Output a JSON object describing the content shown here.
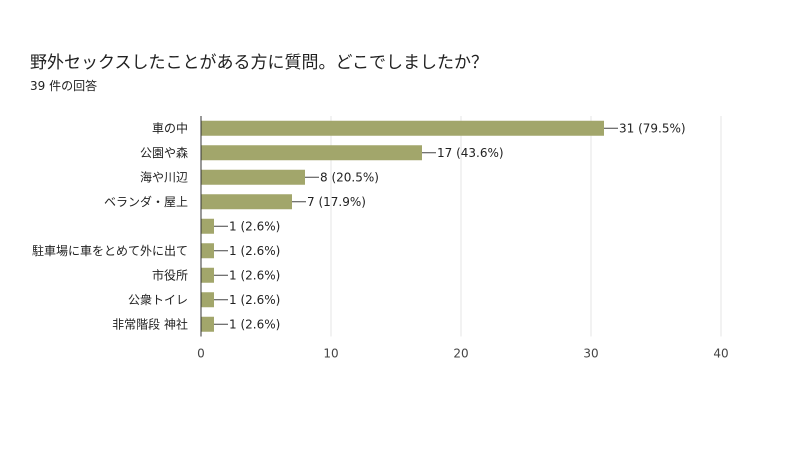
{
  "question": {
    "title": "野外セックスしたことがある方に質問。どこでしましたか？",
    "response_count": "39 件の回答"
  },
  "chart_data": {
    "type": "bar",
    "orientation": "horizontal",
    "categories": [
      "車の中",
      "公園や森",
      "海や川辺",
      "ベランダ・屋上",
      "",
      "駐車場に車をとめて外に出て",
      "市役所",
      "公衆トイレ",
      "非常階段 神社"
    ],
    "values": [
      31,
      17,
      8,
      7,
      1,
      1,
      1,
      1,
      1
    ],
    "data_labels": [
      "31 (79.5%)",
      "17 (43.6%)",
      "8 (20.5%)",
      "7 (17.9%)",
      "1 (2.6%)",
      "1 (2.6%)",
      "1 (2.6%)",
      "1 (2.6%)",
      "1 (2.6%)"
    ],
    "xlim": [
      0,
      40
    ],
    "xticks": [
      "0",
      "10",
      "20",
      "30",
      "40"
    ],
    "grid": true,
    "bar_color": "#a2a66b"
  }
}
